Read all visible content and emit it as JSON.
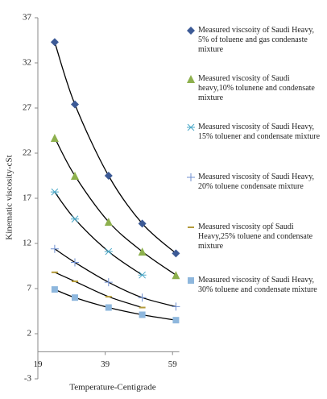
{
  "chart_data": {
    "type": "scatter",
    "x_label": "Temperature-Centigrade",
    "y_label": "Kinematic viscosity-cSt",
    "x": [
      24,
      30,
      40,
      50,
      60
    ],
    "series": [
      {
        "name": "Measured viscsoity of Saudi Heavy, 5% of toluene and gas condenaste mixture",
        "color": "#3c5a96",
        "marker": "diamond",
        "values": [
          34.3,
          27.4,
          19.5,
          14.2,
          10.9
        ]
      },
      {
        "name": "Measured viscosity of Saudi heavy,10% tolunene and condensate mixture",
        "color": "#8db04d",
        "marker": "triangle",
        "values": [
          23.7,
          19.5,
          14.4,
          11.1,
          8.5
        ]
      },
      {
        "name": "Measured viscosity of Saudi Heavy, 15% toluener and condensate mixture",
        "color": "#4aa8c8",
        "marker": "asterisk",
        "values": [
          17.7,
          14.7,
          11.1,
          8.5,
          null
        ]
      },
      {
        "name": "Measured viscosity of Saudi Heavy, 20% toluene condensate mixture",
        "color": "#6f8fcf",
        "marker": "plus",
        "values": [
          11.4,
          9.9,
          7.7,
          6.0,
          5.0
        ]
      },
      {
        "name": "Measured viscosity opf Saudi Heavy,25% toluene and condensate mixture",
        "color": "#b39a3a",
        "marker": "dash",
        "values": [
          8.8,
          7.8,
          6.1,
          4.9,
          null
        ]
      },
      {
        "name": "Measured viscosity of Saudi Heavy, 30% toluene and condensate mixture",
        "color": "#8eb7dd",
        "marker": "square",
        "values": [
          6.9,
          6.0,
          4.9,
          4.1,
          3.5
        ]
      }
    ],
    "trendline": true,
    "xlim": [
      19,
      61
    ],
    "xticks": [
      19,
      39,
      59
    ],
    "ylim": [
      -3,
      37
    ],
    "yticks": [
      -3,
      2,
      7,
      12,
      17,
      22,
      27,
      32,
      37
    ]
  }
}
